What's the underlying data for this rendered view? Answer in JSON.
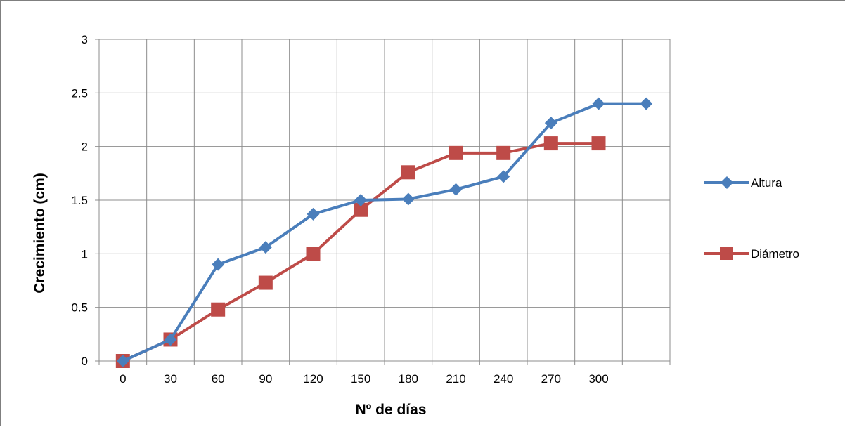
{
  "chart_data": {
    "type": "line",
    "title": "",
    "xlabel": "Nº de días",
    "ylabel": "Crecimiento (cm)",
    "x": [
      "0",
      "30",
      "60",
      "90",
      "120",
      "150",
      "180",
      "210",
      "240",
      "270",
      "300",
      ""
    ],
    "ylim": [
      0,
      3
    ],
    "yticks": [
      "0",
      "0.5",
      "1",
      "1.5",
      "2",
      "2.5",
      "3"
    ],
    "grid": true,
    "legend": "right",
    "series": [
      {
        "name": "Altura",
        "color": "#4a7ebb",
        "marker": "diamond",
        "values": [
          0,
          0.2,
          0.9,
          1.06,
          1.37,
          1.5,
          1.51,
          1.6,
          1.72,
          2.22,
          2.4,
          2.4
        ]
      },
      {
        "name": "Diámetro",
        "color": "#be4b48",
        "marker": "square",
        "values": [
          0,
          0.2,
          0.48,
          0.73,
          1.0,
          1.41,
          1.76,
          1.94,
          1.94,
          2.03,
          2.03,
          null
        ]
      }
    ]
  }
}
